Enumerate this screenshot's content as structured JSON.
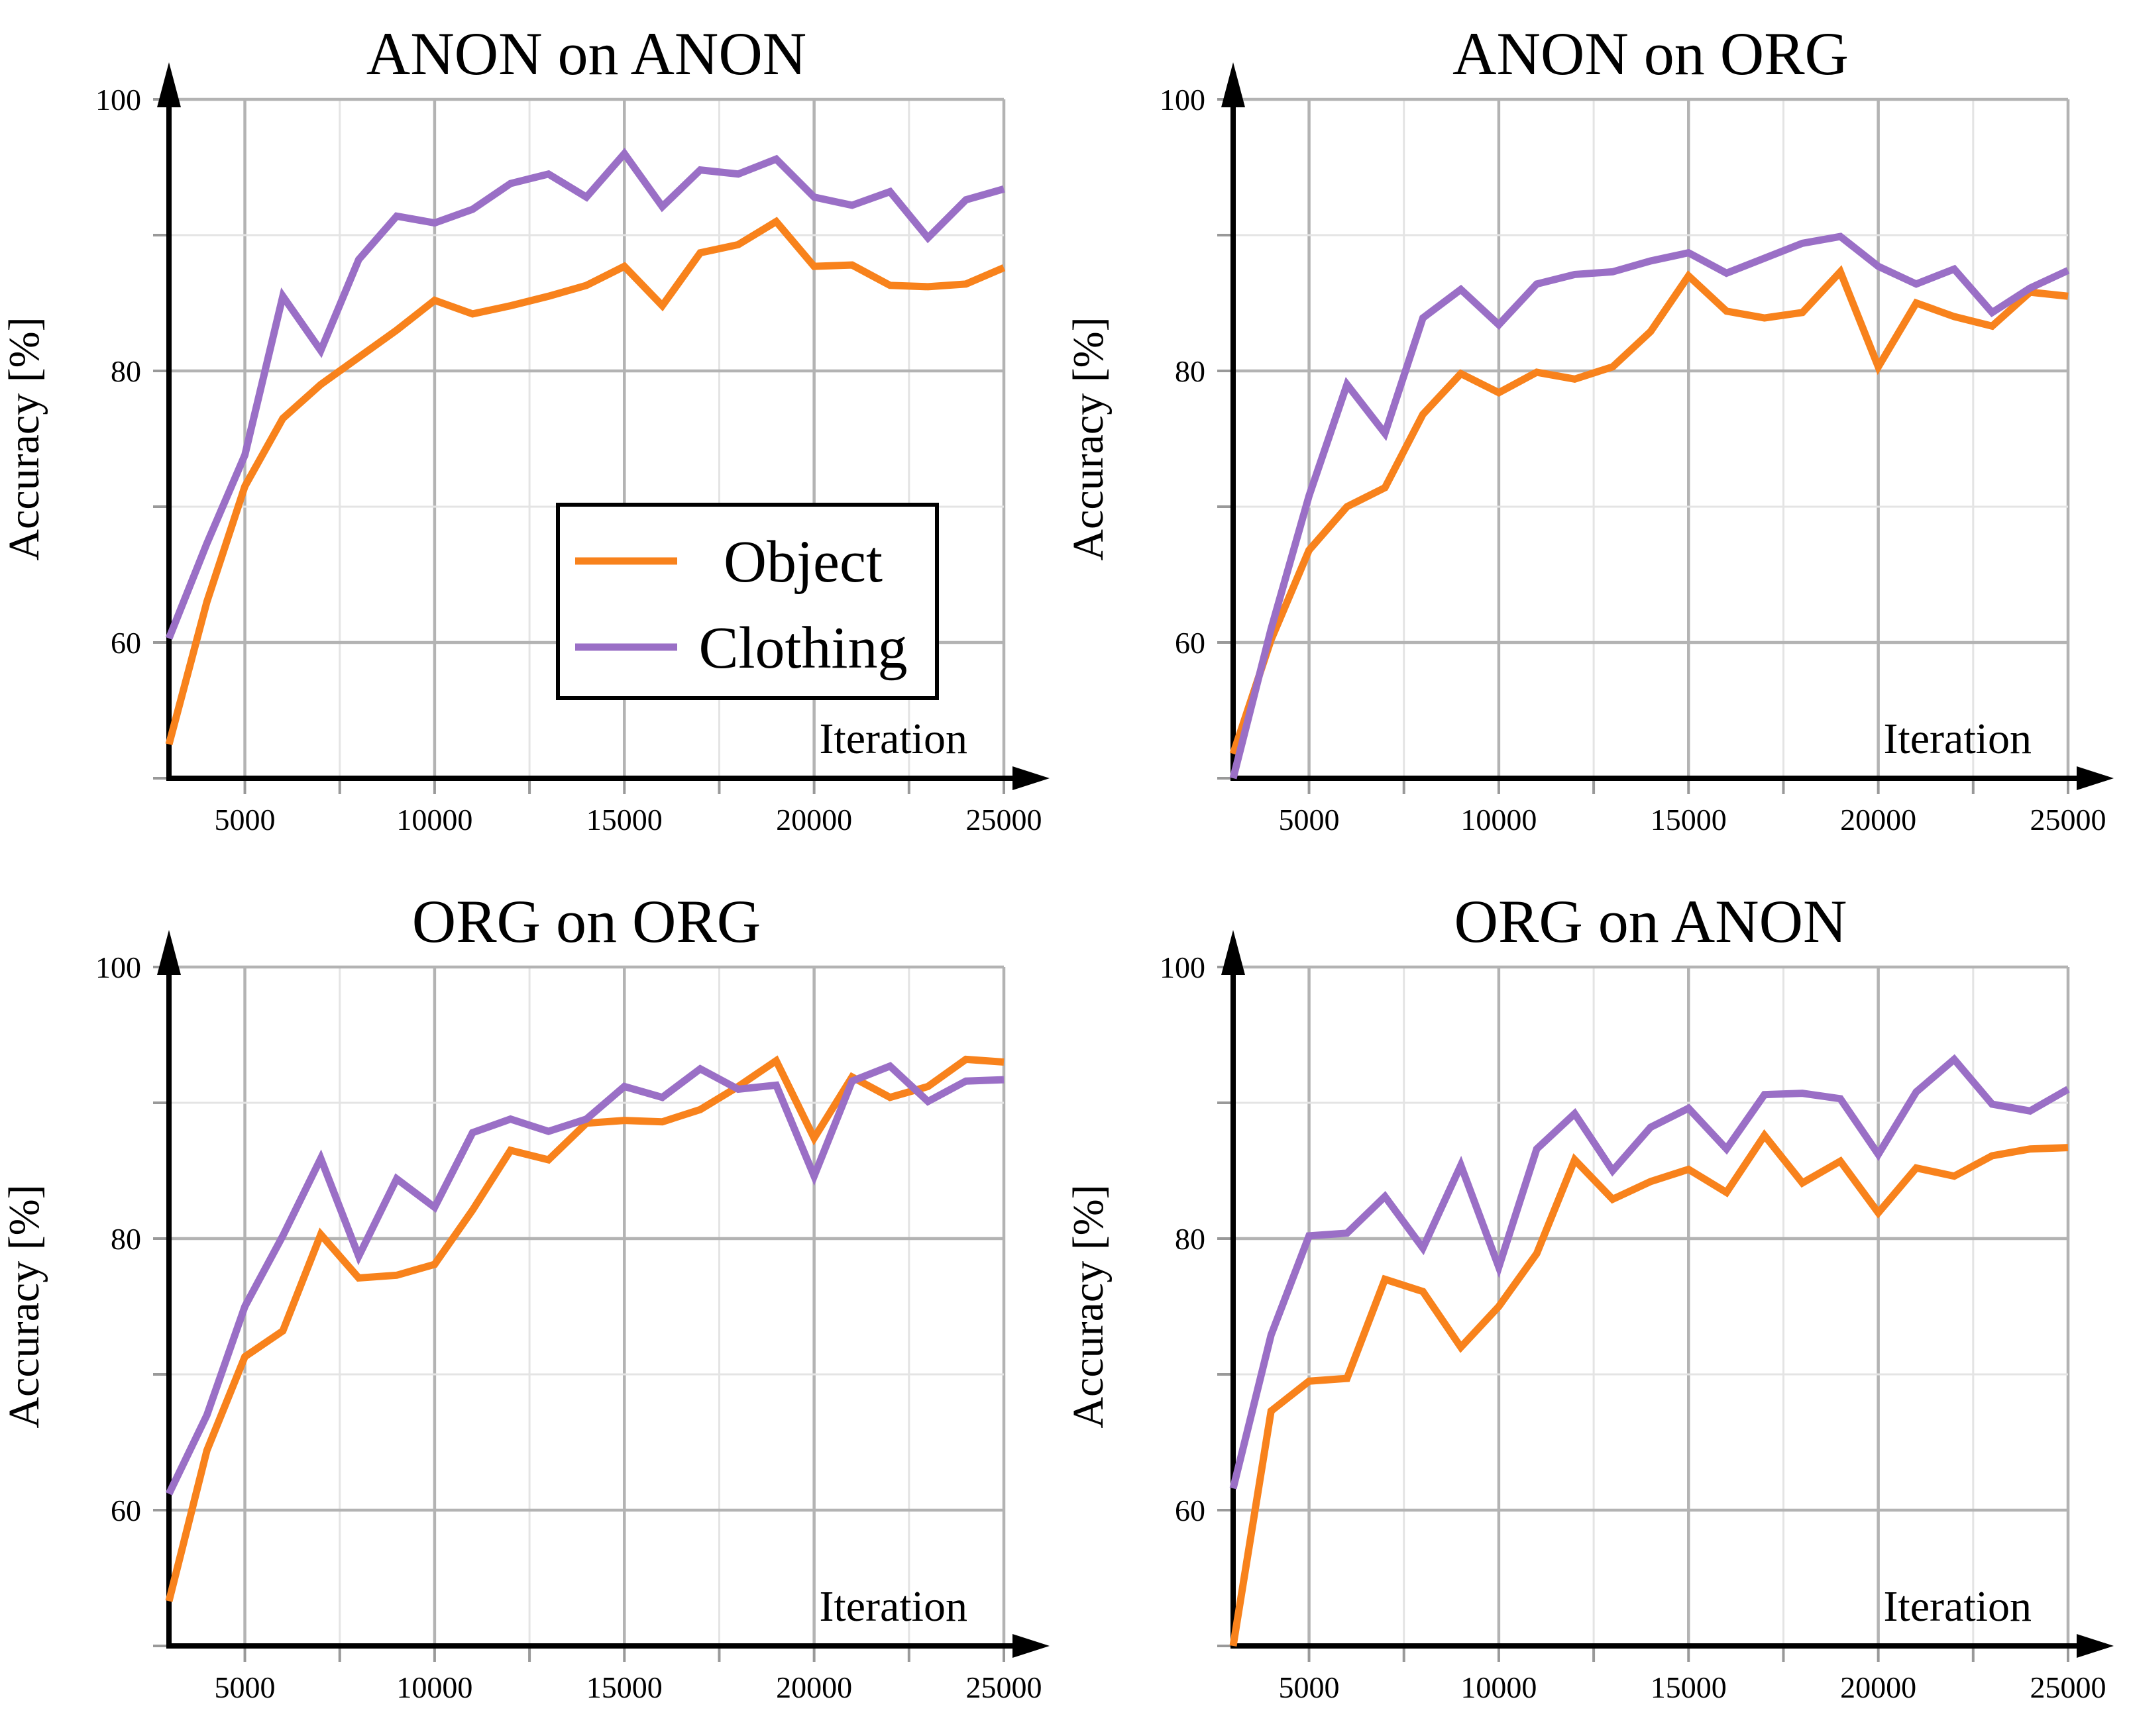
{
  "figure": {
    "background": "#ffffff",
    "colors": {
      "object_line": "#F8821C",
      "clothing_line": "#9A6FC6",
      "grid_major": "#b3b3b3",
      "grid_minor": "#e4e4e4",
      "tick": "#999999",
      "axis": "#000000"
    },
    "legend": {
      "shown_on_chart": "ANON on ANON",
      "items": [
        {
          "label": "Object",
          "color": "#F8821C"
        },
        {
          "label": "Clothing",
          "color": "#9A6FC6"
        }
      ]
    },
    "axis": {
      "xlabel": "Iteration",
      "ylabel": "Accuracy [%]",
      "x_gridlines": [
        5000,
        7500,
        10000,
        12500,
        15000,
        17500,
        20000,
        22500,
        25000
      ],
      "x_tick_labels": [
        5000,
        10000,
        15000,
        20000,
        25000
      ],
      "y_gridlines": [
        60,
        70,
        80,
        90,
        100
      ],
      "y_axis_ticks": [
        50,
        60,
        70,
        80,
        90,
        100
      ],
      "y_tick_labels": [
        100,
        80,
        60
      ]
    }
  },
  "chart_data": [
    {
      "type": "line",
      "title": "ANON on ANON",
      "xlabel": "Iteration",
      "ylabel": "Accuracy [%]",
      "xlim": [
        3000,
        25000
      ],
      "ylim": [
        50,
        100
      ],
      "grid": true,
      "legend_visible": true,
      "x": [
        3000,
        4000,
        5000,
        6000,
        7000,
        8000,
        9000,
        10000,
        11000,
        12000,
        13000,
        14000,
        15000,
        16000,
        17000,
        18000,
        19000,
        20000,
        21000,
        22000,
        23000,
        24000,
        25000
      ],
      "series": [
        {
          "name": "Object",
          "color": "#F8821C",
          "values": [
            52.5,
            63.0,
            71.5,
            76.5,
            79.0,
            81.0,
            83.0,
            85.2,
            84.2,
            84.8,
            85.5,
            86.3,
            87.7,
            84.8,
            88.7,
            89.3,
            91.0,
            87.7,
            87.8,
            86.3,
            86.2,
            86.4,
            87.6
          ]
        },
        {
          "name": "Clothing",
          "color": "#9A6FC6",
          "values": [
            60.3,
            67.3,
            73.8,
            85.5,
            81.5,
            88.2,
            91.4,
            90.9,
            91.9,
            93.8,
            94.5,
            92.8,
            96.0,
            92.1,
            94.8,
            94.5,
            95.6,
            92.8,
            92.2,
            93.2,
            89.8,
            92.6,
            93.4
          ]
        }
      ]
    },
    {
      "type": "line",
      "title": "ANON on ORG",
      "xlabel": "Iteration",
      "ylabel": "Accuracy [%]",
      "xlim": [
        3000,
        25000
      ],
      "ylim": [
        50,
        100
      ],
      "grid": true,
      "legend_visible": false,
      "x": [
        3000,
        4000,
        5000,
        6000,
        7000,
        8000,
        9000,
        10000,
        11000,
        12000,
        13000,
        14000,
        15000,
        16000,
        17000,
        18000,
        19000,
        20000,
        21000,
        22000,
        23000,
        24000,
        25000
      ],
      "series": [
        {
          "name": "Object",
          "color": "#F8821C",
          "values": [
            51.8,
            60.2,
            66.8,
            70.0,
            71.4,
            76.8,
            79.8,
            78.4,
            79.9,
            79.4,
            80.3,
            82.9,
            87.0,
            84.4,
            83.9,
            84.3,
            87.3,
            80.3,
            85.0,
            84.0,
            83.3,
            85.8,
            85.5
          ]
        },
        {
          "name": "Clothing",
          "color": "#9A6FC6",
          "values": [
            50.0,
            61.0,
            70.8,
            79.0,
            75.4,
            83.9,
            86.0,
            83.4,
            86.4,
            87.1,
            87.3,
            88.1,
            88.7,
            87.2,
            88.3,
            89.4,
            89.9,
            87.7,
            86.4,
            87.5,
            84.3,
            86.1,
            87.4
          ]
        }
      ]
    },
    {
      "type": "line",
      "title": "ORG on ORG",
      "xlabel": "Iteration",
      "ylabel": "Accuracy [%]",
      "xlim": [
        3000,
        25000
      ],
      "ylim": [
        50,
        100
      ],
      "grid": true,
      "legend_visible": false,
      "x": [
        3000,
        4000,
        5000,
        6000,
        7000,
        8000,
        9000,
        10000,
        11000,
        12000,
        13000,
        14000,
        15000,
        16000,
        17000,
        18000,
        19000,
        20000,
        21000,
        22000,
        23000,
        24000,
        25000
      ],
      "series": [
        {
          "name": "Object",
          "color": "#F8821C",
          "values": [
            53.3,
            64.4,
            71.3,
            73.2,
            80.3,
            77.1,
            77.3,
            78.1,
            82.1,
            86.5,
            85.8,
            88.5,
            88.7,
            88.6,
            89.5,
            91.2,
            93.1,
            87.4,
            91.9,
            90.4,
            91.2,
            93.2,
            93.0
          ]
        },
        {
          "name": "Clothing",
          "color": "#9A6FC6",
          "values": [
            61.2,
            67.0,
            75.0,
            80.2,
            85.9,
            78.7,
            84.4,
            82.3,
            87.8,
            88.8,
            87.9,
            88.8,
            91.2,
            90.4,
            92.5,
            91.0,
            91.3,
            84.6,
            91.6,
            92.7,
            90.1,
            91.6,
            91.7
          ]
        }
      ]
    },
    {
      "type": "line",
      "title": "ORG on ANON",
      "xlabel": "Iteration",
      "ylabel": "Accuracy [%]",
      "xlim": [
        3000,
        25000
      ],
      "ylim": [
        50,
        100
      ],
      "grid": true,
      "legend_visible": false,
      "x": [
        3000,
        4000,
        5000,
        6000,
        7000,
        8000,
        9000,
        10000,
        11000,
        12000,
        13000,
        14000,
        15000,
        16000,
        17000,
        18000,
        19000,
        20000,
        21000,
        22000,
        23000,
        24000,
        25000
      ],
      "series": [
        {
          "name": "Object",
          "color": "#F8821C",
          "values": [
            50.0,
            67.3,
            69.5,
            69.7,
            77.0,
            76.1,
            72.0,
            75.0,
            78.9,
            85.8,
            82.9,
            84.2,
            85.1,
            83.4,
            87.6,
            84.1,
            85.7,
            81.9,
            85.2,
            84.6,
            86.1,
            86.6,
            86.7
          ]
        },
        {
          "name": "Clothing",
          "color": "#9A6FC6",
          "values": [
            61.6,
            72.9,
            80.2,
            80.4,
            83.1,
            79.3,
            85.4,
            77.9,
            86.6,
            89.2,
            85.0,
            88.2,
            89.6,
            86.6,
            90.6,
            90.7,
            90.3,
            86.2,
            90.8,
            93.2,
            89.9,
            89.4,
            91.0
          ]
        }
      ]
    }
  ]
}
